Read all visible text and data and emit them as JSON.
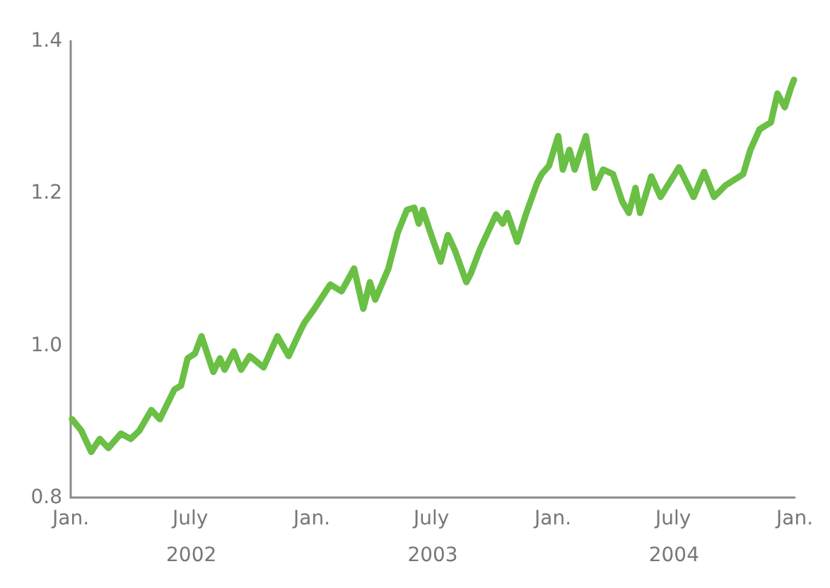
{
  "chart_data": {
    "type": "line",
    "grid": false,
    "marker": "none",
    "line_style": "solid",
    "annotations": [
      "2002",
      "2003",
      "2004"
    ],
    "xlim": [
      "2002-01-01",
      "2005-01-01"
    ],
    "xticks": [
      {
        "value": "2002-01-01",
        "label": "Jan."
      },
      {
        "value": "2002-07-01",
        "label": "July"
      },
      {
        "value": "2003-01-01",
        "label": "Jan."
      },
      {
        "value": "2003-07-01",
        "label": "July"
      },
      {
        "value": "2004-01-01",
        "label": "Jan."
      },
      {
        "value": "2004-07-01",
        "label": "July"
      },
      {
        "value": "2005-01-01",
        "label": "Jan."
      }
    ],
    "ylim": [
      0.8,
      1.4
    ],
    "yticks": [
      0.8,
      {
        "value": 1.0,
        "label": "1.0"
      },
      1.2,
      1.4
    ],
    "x": [
      "2002-01-03",
      "2002-01-17",
      "2002-02-01",
      "2002-02-14",
      "2002-02-27",
      "2002-03-18",
      "2002-04-02",
      "2002-04-15",
      "2002-05-03",
      "2002-05-16",
      "2002-06-07",
      "2002-06-17",
      "2002-06-27",
      "2002-07-08",
      "2002-07-18",
      "2002-08-05",
      "2002-08-15",
      "2002-08-22",
      "2002-09-05",
      "2002-09-16",
      "2002-09-29",
      "2002-10-20",
      "2002-11-10",
      "2002-11-27",
      "2002-12-14",
      "2002-12-21",
      "2003-01-05",
      "2003-01-29",
      "2003-02-15",
      "2003-03-06",
      "2003-03-20",
      "2003-03-30",
      "2003-04-07",
      "2003-04-27",
      "2003-05-11",
      "2003-05-25",
      "2003-06-05",
      "2003-06-12",
      "2003-06-18",
      "2003-07-02",
      "2003-07-15",
      "2003-07-26",
      "2003-08-06",
      "2003-08-23",
      "2003-08-30",
      "2003-09-13",
      "2003-10-07",
      "2003-10-17",
      "2003-10-24",
      "2003-11-08",
      "2003-11-21",
      "2003-12-08",
      "2003-12-15",
      "2003-12-26",
      "2004-01-09",
      "2004-01-16",
      "2004-01-26",
      "2004-02-03",
      "2004-02-20",
      "2004-03-04",
      "2004-03-17",
      "2004-04-01",
      "2004-04-15",
      "2004-04-25",
      "2004-05-05",
      "2004-05-12",
      "2004-05-29",
      "2004-06-12",
      "2004-07-10",
      "2004-08-01",
      "2004-08-17",
      "2004-09-01",
      "2004-09-18",
      "2004-10-15",
      "2004-10-26",
      "2004-11-09",
      "2004-11-26",
      "2004-12-06",
      "2004-12-17",
      "2004-12-27",
      "2004-12-31"
    ],
    "series": [
      {
        "color": "#6abf45",
        "values": [
          0.903,
          0.888,
          0.86,
          0.877,
          0.865,
          0.884,
          0.877,
          0.888,
          0.915,
          0.903,
          0.942,
          0.947,
          0.983,
          0.989,
          1.012,
          0.965,
          0.983,
          0.968,
          0.992,
          0.968,
          0.986,
          0.971,
          1.012,
          0.986,
          1.018,
          1.03,
          1.048,
          1.08,
          1.071,
          1.101,
          1.048,
          1.083,
          1.06,
          1.101,
          1.148,
          1.178,
          1.181,
          1.16,
          1.178,
          1.142,
          1.11,
          1.145,
          1.124,
          1.083,
          1.095,
          1.127,
          1.172,
          1.16,
          1.174,
          1.136,
          1.172,
          1.213,
          1.225,
          1.236,
          1.275,
          1.231,
          1.257,
          1.231,
          1.275,
          1.207,
          1.231,
          1.225,
          1.189,
          1.174,
          1.207,
          1.174,
          1.222,
          1.195,
          1.234,
          1.195,
          1.228,
          1.195,
          1.21,
          1.225,
          1.257,
          1.284,
          1.293,
          1.331,
          1.313,
          1.34,
          1.349
        ]
      }
    ]
  }
}
